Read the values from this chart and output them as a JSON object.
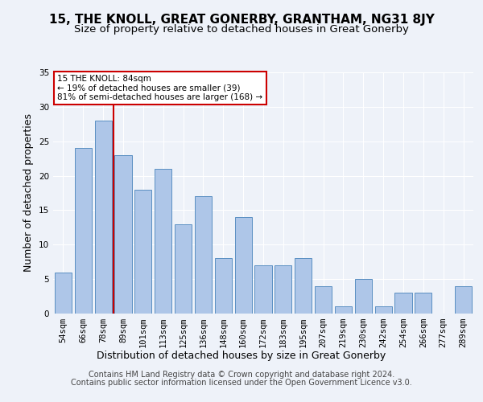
{
  "title": "15, THE KNOLL, GREAT GONERBY, GRANTHAM, NG31 8JY",
  "subtitle": "Size of property relative to detached houses in Great Gonerby",
  "xlabel": "Distribution of detached houses by size in Great Gonerby",
  "ylabel": "Number of detached properties",
  "categories": [
    "54sqm",
    "66sqm",
    "78sqm",
    "89sqm",
    "101sqm",
    "113sqm",
    "125sqm",
    "136sqm",
    "148sqm",
    "160sqm",
    "172sqm",
    "183sqm",
    "195sqm",
    "207sqm",
    "219sqm",
    "230sqm",
    "242sqm",
    "254sqm",
    "266sqm",
    "277sqm",
    "289sqm"
  ],
  "values": [
    6,
    24,
    28,
    23,
    18,
    21,
    13,
    17,
    8,
    14,
    7,
    7,
    8,
    4,
    1,
    5,
    1,
    3,
    3,
    0,
    4
  ],
  "bar_color": "#aec6e8",
  "bar_edge_color": "#5a8fc2",
  "red_line_x": 2.5,
  "annotation_text": "15 THE KNOLL: 84sqm\n← 19% of detached houses are smaller (39)\n81% of semi-detached houses are larger (168) →",
  "annotation_box_color": "#ffffff",
  "annotation_box_edge": "#cc0000",
  "ylim": [
    0,
    35
  ],
  "yticks": [
    0,
    5,
    10,
    15,
    20,
    25,
    30,
    35
  ],
  "footer_line1": "Contains HM Land Registry data © Crown copyright and database right 2024.",
  "footer_line2": "Contains public sector information licensed under the Open Government Licence v3.0.",
  "background_color": "#eef2f9",
  "grid_color": "#ffffff",
  "title_fontsize": 11,
  "subtitle_fontsize": 9.5,
  "axis_label_fontsize": 9,
  "tick_fontsize": 7.5,
  "footer_fontsize": 7
}
